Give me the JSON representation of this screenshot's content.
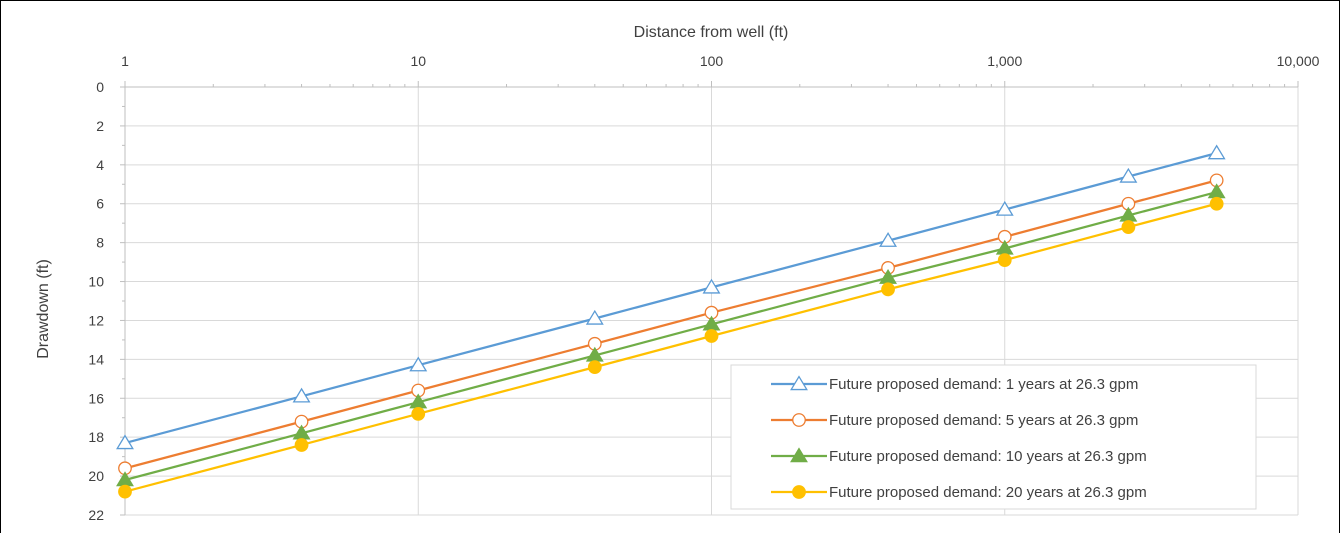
{
  "chart_data": {
    "type": "line",
    "xlabel": "Distance from well (ft)",
    "ylabel": "Drawdown (ft)",
    "x_scale": "log",
    "x_axis_position": "top",
    "y_inverted": true,
    "xlim": [
      1,
      10000
    ],
    "ylim": [
      0,
      22
    ],
    "x_ticks": [
      1,
      10,
      100,
      1000,
      10000
    ],
    "x_tick_labels": [
      "1",
      "10",
      "100",
      "1,000",
      "10,000"
    ],
    "y_ticks": [
      0,
      2,
      4,
      6,
      8,
      10,
      12,
      14,
      16,
      18,
      20,
      22
    ],
    "y_tick_labels": [
      "0",
      "2",
      "4",
      "6",
      "8",
      "10",
      "12",
      "14",
      "16",
      "18",
      "20",
      "22"
    ],
    "grid": true,
    "legend_position": "bottom-right",
    "x": [
      1,
      4,
      10,
      40,
      100,
      400,
      1000,
      2640,
      5280
    ],
    "series": [
      {
        "name": "Future proposed demand: 1 years at 26.3 gpm",
        "color": "#5B9BD5",
        "marker": "triangle-open",
        "values": [
          18.3,
          15.9,
          14.3,
          11.9,
          10.3,
          7.9,
          6.3,
          4.6,
          3.4
        ]
      },
      {
        "name": "Future proposed demand: 5 years at 26.3 gpm",
        "color": "#ED7D31",
        "marker": "circle-open",
        "values": [
          19.6,
          17.2,
          15.6,
          13.2,
          11.6,
          9.3,
          7.7,
          6.0,
          4.8
        ]
      },
      {
        "name": "Future proposed demand: 10 years at 26.3 gpm",
        "color": "#70AD47",
        "marker": "triangle-filled",
        "values": [
          20.2,
          17.8,
          16.2,
          13.8,
          12.2,
          9.8,
          8.3,
          6.6,
          5.4
        ]
      },
      {
        "name": "Future proposed demand: 20 years at 26.3 gpm",
        "color": "#FFC000",
        "marker": "circle-filled",
        "values": [
          20.8,
          18.4,
          16.8,
          14.4,
          12.8,
          10.4,
          8.9,
          7.2,
          6.0
        ]
      }
    ]
  }
}
